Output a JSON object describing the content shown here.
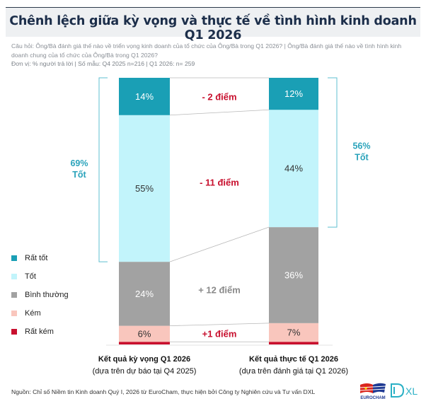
{
  "header": {
    "title": "Chênh lệch giữa kỳ vọng và thực tế về tình hình kinh doanh Q1 2026",
    "question_line1": "Câu hỏi: Ông/Bà đánh giá thế nào về triển vọng kinh doanh của tổ chức của Ông/Bà trong Q1 2026? | Ông/Bà đánh giá thế nào về tình hình kinh",
    "question_line2": "doanh chung của tổ chức của Ông/Bà trong Q1 2026?",
    "unit": "Đơn vị: % người trả lời | Số mẫu: Q4 2025 n=216 | Q1 2026: n= 259"
  },
  "chart_data": {
    "type": "bar",
    "subtype": "stacked-100",
    "title": "Chênh lệch giữa kỳ vọng và thực tế về tình hình kinh doanh Q1 2026",
    "categories": [
      "Kết quả kỳ vọng Q1 2026",
      "Kết quả thực tế Q1 2026"
    ],
    "category_subtitles": [
      "(dựa trên dự báo tại Q4 2025)",
      "(dựa trên đánh giá tại Q1 2026)"
    ],
    "series": [
      {
        "name": "Rất kém",
        "color": "#c8102e",
        "values": [
          1,
          1
        ],
        "labels": [
          "",
          ""
        ]
      },
      {
        "name": "Kém",
        "color": "#f9c6bd",
        "values": [
          6,
          7
        ],
        "labels": [
          "6%",
          "7%"
        ]
      },
      {
        "name": "Bình thường",
        "color": "#a2a2a2",
        "values": [
          24,
          36
        ],
        "labels": [
          "24%",
          "36%"
        ]
      },
      {
        "name": "Tốt",
        "color": "#c2f4fb",
        "values": [
          55,
          44
        ],
        "labels": [
          "55%",
          "44%"
        ]
      },
      {
        "name": "Rất tốt",
        "color": "#1a9fb5",
        "values": [
          14,
          12
        ],
        "labels": [
          "14%",
          "12%"
        ]
      }
    ],
    "differences": [
      {
        "series": "Rất tốt",
        "label": "- 2 điểm",
        "color": "#c8102e"
      },
      {
        "series": "Tốt",
        "label": "- 11 điểm",
        "color": "#c8102e"
      },
      {
        "series": "Bình thường",
        "label": "+ 12 điểm",
        "color": "#8a8a8a"
      },
      {
        "series": "Kém",
        "label": "+1 điểm",
        "color": "#c8102e"
      }
    ],
    "brackets": [
      {
        "category": 0,
        "value": "69%",
        "label": "Tốt",
        "side": "left"
      },
      {
        "category": 1,
        "value": "56%",
        "label": "Tốt",
        "side": "right"
      }
    ],
    "legend": [
      "Rất tốt",
      "Tốt",
      "Bình thường",
      "Kém",
      "Rất kém"
    ],
    "legend_placement": "left",
    "ylim": [
      0,
      100
    ],
    "grid": false
  },
  "legend": [
    {
      "label": "Rất tốt",
      "color": "#1a9fb5"
    },
    {
      "label": "Tốt",
      "color": "#c2f4fb"
    },
    {
      "label": "Bình thường",
      "color": "#a2a2a2"
    },
    {
      "label": "Kém",
      "color": "#f9c6bd"
    },
    {
      "label": "Rất kém",
      "color": "#c8102e"
    }
  ],
  "xaxis": {
    "left_title": "Kết quả kỳ vọng Q1 2026",
    "left_sub": "(dựa trên dự báo tại Q4 2025)",
    "right_title": "Kết quả thực tế Q1 2026",
    "right_sub": "(dựa trên đánh giá tại Q1 2026)"
  },
  "footer": {
    "source": "Nguồn: Chỉ số Niềm tin Kinh doanh Quý I, 2026 từ EuroCham, thực hiện bởi Công ty Nghiên cứu và Tư vấn DXL",
    "logo_eurocham": "EUROCHAM",
    "logo_dxl": "XL"
  }
}
